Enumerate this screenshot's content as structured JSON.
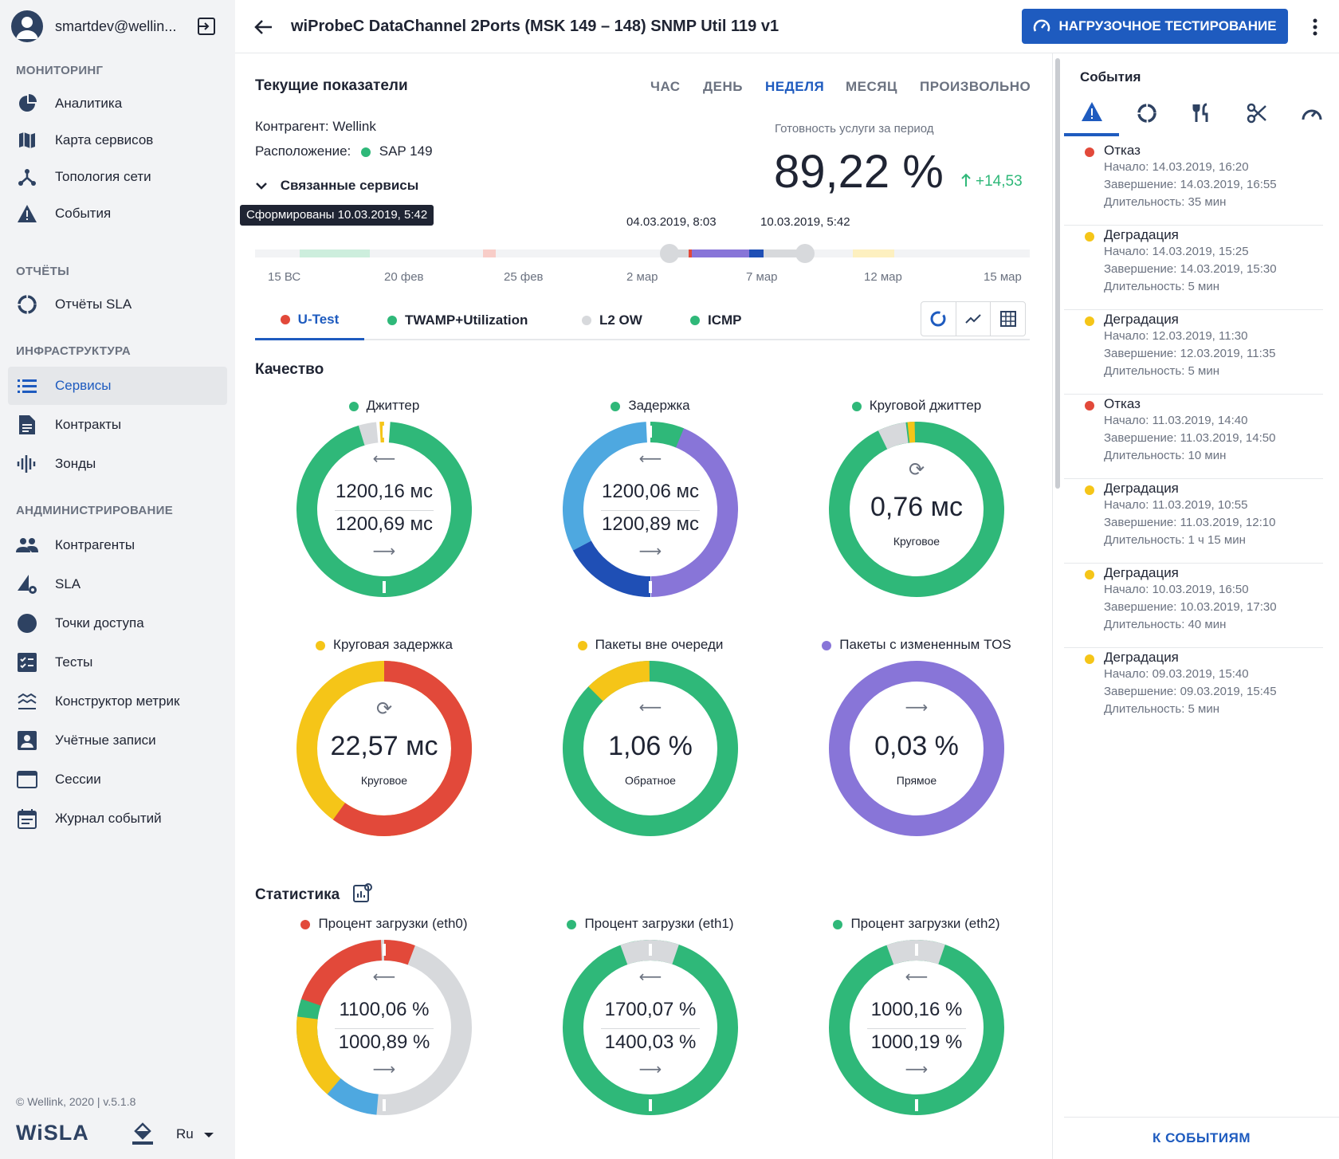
{
  "user": {
    "email": "smartdev@wellin..."
  },
  "sidebar": {
    "sections": [
      "МОНИТОРИНГ",
      "ОТЧЁТЫ",
      "ИНФРАСТРУКТУРА",
      "АНДМИНИСТРИРОВАНИЕ"
    ],
    "items": [
      {
        "label": "Аналитика",
        "icon": "pie-chart-icon"
      },
      {
        "label": "Карта сервисов",
        "icon": "map-icon"
      },
      {
        "label": "Топология сети",
        "icon": "topology-icon"
      },
      {
        "label": "События",
        "icon": "warning-icon"
      },
      {
        "label": "Отчёты SLA",
        "icon": "circle-progress-icon"
      },
      {
        "label": "Сервисы",
        "icon": "list-icon"
      },
      {
        "label": "Контракты",
        "icon": "document-icon"
      },
      {
        "label": "Зонды",
        "icon": "signal-icon"
      },
      {
        "label": "Контрагенты",
        "icon": "people-icon"
      },
      {
        "label": "SLA",
        "icon": "sla-gear-icon"
      },
      {
        "label": "Точки доступа",
        "icon": "dot-icon"
      },
      {
        "label": "Тесты",
        "icon": "checklist-icon"
      },
      {
        "label": "Конструктор метрик",
        "icon": "layers-icon"
      },
      {
        "label": "Учётные записи",
        "icon": "account-icon"
      },
      {
        "label": "Сессии",
        "icon": "window-icon"
      },
      {
        "label": "Журнал событий",
        "icon": "calendar-icon"
      }
    ],
    "footer": {
      "copyright": "© Wellink, 2020 | v.5.1.8",
      "logo": "WiSLA",
      "language": "Ru"
    }
  },
  "header": {
    "title": "wiProbeC DataChannel 2Ports (MSK 149 – 148) SNMP Util 119 v1",
    "load_button": "НАГРУЗОЧНОЕ ТЕСТИРОВАНИЕ"
  },
  "current": {
    "title": "Текущие показатели",
    "periods": [
      "ЧАС",
      "ДЕНЬ",
      "НЕДЕЛЯ",
      "МЕСЯЦ",
      "ПРОИЗВОЛЬНО"
    ],
    "active_period": "НЕДЕЛЯ",
    "counterparty": "Контрагент: Wellink",
    "location_label": "Расположение:",
    "location_value": "SAP 149",
    "related": "Связанные сервисы",
    "availability_label": "Готовность услуги за период",
    "availability_value": "89,22 %",
    "availability_delta": "+14,53",
    "tooltip": "Сформированы 10.03.2019, 5:42"
  },
  "timeline": {
    "range_start": "04.03.2019, 8:03",
    "range_end": "10.03.2019, 5:42",
    "ticks": [
      "15 ВС",
      "20 фев",
      "25 фев",
      "2 мар",
      "7 мар",
      "12 мар",
      "15 мар"
    ]
  },
  "tabs": [
    {
      "label": "U-Test",
      "color": "#e2493a"
    },
    {
      "label": "TWAMP+Utilization",
      "color": "#2fb879"
    },
    {
      "label": "L2 OW",
      "color": "#d7d9dc"
    },
    {
      "label": "ICMP",
      "color": "#2fb879"
    }
  ],
  "quality": {
    "title": "Качество",
    "gauges": [
      {
        "title": "Джиттер",
        "dot": "#2fb879",
        "v1": "1200,16 мс",
        "v2": "1200,69 мс"
      },
      {
        "title": "Задержка",
        "dot": "#2fb879",
        "v1": "1200,06 мс",
        "v2": "1200,89 мс"
      },
      {
        "title": "Круговой джиттер",
        "dot": "#2fb879",
        "v": "0,76 мс",
        "sub": "Круговое"
      },
      {
        "title": "Круговая задержка",
        "dot": "#f5c518",
        "v": "22,57 мс",
        "sub": "Круговое"
      },
      {
        "title": "Пакеты вне очереди",
        "dot": "#f5c518",
        "v": "1,06 %",
        "sub": "Обратное"
      },
      {
        "title": "Пакеты с измененным TOS",
        "dot": "#8875d8",
        "v": "0,03 %",
        "sub": "Прямое"
      }
    ]
  },
  "statistics": {
    "title": "Статистика",
    "gauges": [
      {
        "title": "Процент загрузки (eth0)",
        "dot": "#e2493a",
        "v1": "1100,06 %",
        "v2": "1000,89 %"
      },
      {
        "title": "Процент загрузки (eth1)",
        "dot": "#2fb879",
        "v1": "1700,07 %",
        "v2": "1400,03 %"
      },
      {
        "title": "Процент загрузки (eth2)",
        "dot": "#2fb879",
        "v1": "1000,16 %",
        "v2": "1000,19 %"
      }
    ]
  },
  "events": {
    "title": "События",
    "footer": "К СОБЫТИЯМ",
    "items": [
      {
        "type": "Отказ",
        "color": "#e2493a",
        "start": "Начало: 14.03.2019, 16:20",
        "end": "Завершение: 14.03.2019, 16:55",
        "dur": "Длительность: 35 мин"
      },
      {
        "type": "Деградация",
        "color": "#f5c518",
        "start": "Начало: 14.03.2019, 15:25",
        "end": "Завершение: 14.03.2019, 15:30",
        "dur": "Длительность: 5 мин"
      },
      {
        "type": "Деградация",
        "color": "#f5c518",
        "start": "Начало: 12.03.2019, 11:30",
        "end": "Завершение: 12.03.2019, 11:35",
        "dur": "Длительность: 5 мин"
      },
      {
        "type": "Отказ",
        "color": "#e2493a",
        "start": "Начало: 11.03.2019, 14:40",
        "end": "Завершение: 11.03.2019, 14:50",
        "dur": "Длительность: 10 мин"
      },
      {
        "type": "Деградация",
        "color": "#f5c518",
        "start": "Начало: 11.03.2019, 10:55",
        "end": "Завершение: 11.03.2019, 12:10",
        "dur": "Длительность: 1 ч 15 мин"
      },
      {
        "type": "Деградация",
        "color": "#f5c518",
        "start": "Начало: 10.03.2019, 16:50",
        "end": "Завершение: 10.03.2019, 17:30",
        "dur": "Длительность: 40 мин"
      },
      {
        "type": "Деградация",
        "color": "#f5c518",
        "start": "Начало: 09.03.2019, 15:40",
        "end": "Завершение: 09.03.2019, 15:45",
        "dur": "Длительность: 5 мин"
      }
    ]
  },
  "colors": {
    "accent": "#1e5bbf",
    "green": "#2fb879",
    "red": "#e2493a",
    "yellow": "#f5c518",
    "purple": "#8875d8",
    "blue": "#4ea8e0",
    "darkblue": "#1f4fb5",
    "gray": "#d7d9dc"
  }
}
